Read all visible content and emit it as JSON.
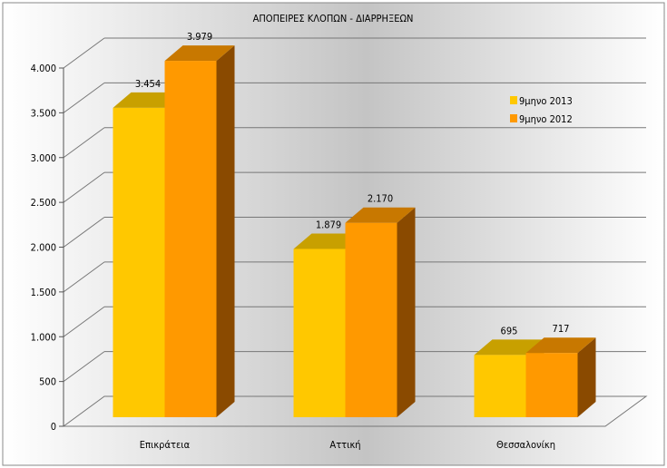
{
  "chart_data": {
    "type": "bar",
    "title": "ΑΠΟΠΕΙΡΕΣ ΚΛΟΠΩΝ - ΔΙΑΡΡΗΞΕΩΝ",
    "categories": [
      "Επικράτεια",
      "Αττική",
      "Θεσσαλονίκη"
    ],
    "series": [
      {
        "name": "9μηνο 2013",
        "values": [
          3454,
          1879,
          695
        ],
        "labels": [
          "3.454",
          "1.879",
          "695"
        ],
        "color": "#FFC800",
        "top": "#C8A000",
        "side": "#8A6C00"
      },
      {
        "name": "9μηνο 2012",
        "values": [
          3979,
          2170,
          717
        ],
        "labels": [
          "3.979",
          "2.170",
          "717"
        ],
        "color": "#FF9900",
        "top": "#C87800",
        "side": "#8A4A00"
      }
    ],
    "yticks": [
      0,
      500,
      1000,
      1500,
      2000,
      2500,
      3000,
      3500,
      4000
    ],
    "ytick_labels": [
      "0",
      "500",
      "1.000",
      "1.500",
      "2.000",
      "2.500",
      "3.000",
      "3.500",
      "4.000"
    ],
    "ylim": [
      0,
      4000
    ],
    "grid": true,
    "legend": "right",
    "style": "3d-bar"
  }
}
